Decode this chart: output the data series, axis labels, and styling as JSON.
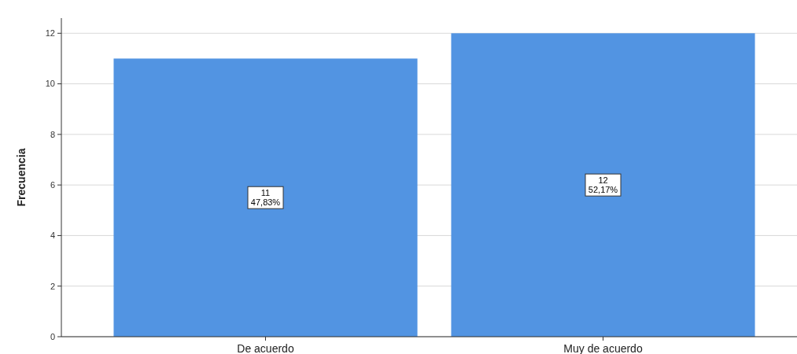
{
  "chart_data": {
    "type": "bar",
    "ylabel": "Frecuencia",
    "categories": [
      "De acuerdo",
      "Muy de acuerdo"
    ],
    "values": [
      11,
      12
    ],
    "color": "#5294e2",
    "value_labels": [
      "11\n47,83%",
      "12\n52,17%"
    ],
    "ylim": [
      0,
      12.6
    ],
    "yticks": [
      0,
      2,
      4,
      6,
      8,
      10,
      12
    ],
    "grid": "y"
  }
}
